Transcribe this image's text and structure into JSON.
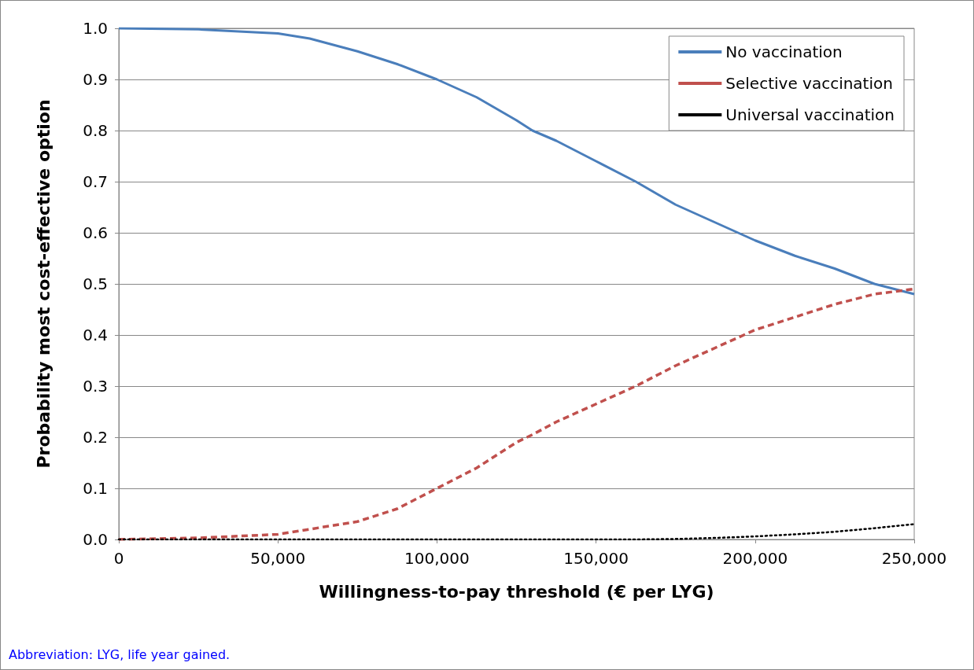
{
  "chart_data": {
    "type": "line",
    "xlabel": "Willingness-to-pay threshold (€ per LYG)",
    "ylabel": "Probability most cost-effective option",
    "annotations": [
      "Abbreviation: LYG, life year gained."
    ],
    "xlim": [
      0,
      250000
    ],
    "xticks": [
      {
        "value": 0,
        "label": "0"
      },
      {
        "value": 50000,
        "label": "50,000"
      },
      {
        "value": 100000,
        "label": "100,000"
      },
      {
        "value": 150000,
        "label": "150,000"
      },
      {
        "value": 200000,
        "label": "200,000"
      },
      {
        "value": 250000,
        "label": "250,000"
      }
    ],
    "ylim": [
      0,
      1
    ],
    "yticks": [
      {
        "value": 0,
        "label": "0.0"
      },
      {
        "value": 0.1,
        "label": "0.1"
      },
      {
        "value": 0.2,
        "label": "0.2"
      },
      {
        "value": 0.3,
        "label": "0.3"
      },
      {
        "value": 0.4,
        "label": "0.4"
      },
      {
        "value": 0.5,
        "label": "0.5"
      },
      {
        "value": 0.6,
        "label": "0.6"
      },
      {
        "value": 0.7,
        "label": "0.7"
      },
      {
        "value": 0.8,
        "label": "0.8"
      },
      {
        "value": 0.9,
        "label": "0.9"
      },
      {
        "value": 1,
        "label": "1.0"
      }
    ],
    "grid": "y",
    "legend": "top right",
    "marker": "none",
    "x": [
      0,
      25000,
      50000,
      60000,
      75000,
      87500,
      100000,
      112500,
      125000,
      130000,
      137500,
      150000,
      162500,
      175000,
      187500,
      200000,
      212500,
      225000,
      237500,
      250000
    ],
    "series": [
      {
        "name": "No vaccination",
        "color": "#4a7ebb",
        "line_style": "solid",
        "values": [
          1.0,
          0.998,
          0.99,
          0.98,
          0.955,
          0.93,
          0.9,
          0.865,
          0.82,
          0.8,
          0.78,
          0.74,
          0.7,
          0.655,
          0.62,
          0.585,
          0.555,
          0.53,
          0.5,
          0.48
        ]
      },
      {
        "name": "Selective vaccination",
        "color": "#c0504d",
        "line_style": "dashed",
        "values": [
          0.0,
          0.003,
          0.01,
          0.02,
          0.035,
          0.06,
          0.1,
          0.14,
          0.19,
          0.205,
          0.23,
          0.265,
          0.3,
          0.34,
          0.375,
          0.41,
          0.435,
          0.46,
          0.48,
          0.49
        ]
      },
      {
        "name": "Universal vaccination",
        "color": "#000000",
        "line_style": "dotted",
        "values": [
          0,
          0,
          0,
          0,
          0,
          0,
          0,
          0,
          0,
          0,
          0,
          0,
          0,
          0.001,
          0.003,
          0.006,
          0.01,
          0.015,
          0.022,
          0.03
        ]
      }
    ]
  }
}
